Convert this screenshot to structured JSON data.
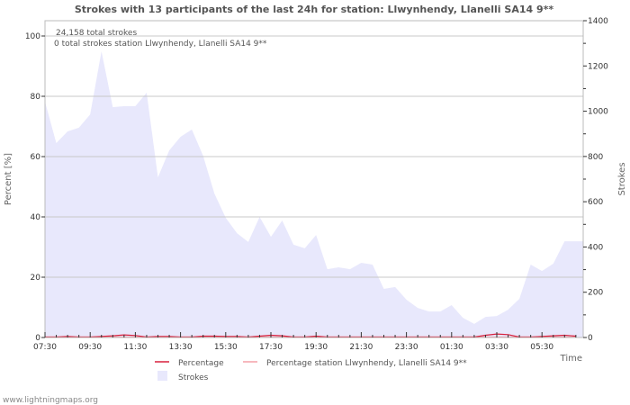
{
  "chart_data": {
    "type": "area",
    "title": "Strokes with 13 participants of the last 24h for station: Llwynhendy, Llanelli SA14 9**",
    "annotations": [
      "24,158 total strokes",
      "0 total strokes station Llwynhendy, Llanelli SA14 9**"
    ],
    "xlabel": "Time",
    "ylabel_left": "Percent   [%]",
    "ylabel_right": "Strokes",
    "x_tick_labels": [
      "07:30",
      "09:30",
      "11:30",
      "13:30",
      "15:30",
      "17:30",
      "19:30",
      "21:30",
      "23:30",
      "01:30",
      "03:30",
      "05:30"
    ],
    "y_left_ticks": [
      0,
      20,
      40,
      60,
      80,
      100
    ],
    "y_right_ticks": [
      0,
      200,
      400,
      600,
      800,
      1000,
      1200,
      1400
    ],
    "ylim_left": [
      0,
      105
    ],
    "ylim_right": [
      0,
      1400
    ],
    "grid": true,
    "legend_position": "bottom",
    "x": [
      "07:30",
      "08:00",
      "08:30",
      "09:00",
      "09:30",
      "10:00",
      "10:30",
      "11:00",
      "11:30",
      "12:00",
      "12:30",
      "13:00",
      "13:30",
      "14:00",
      "14:30",
      "15:00",
      "15:30",
      "16:00",
      "16:30",
      "17:00",
      "17:30",
      "18:00",
      "18:30",
      "19:00",
      "19:30",
      "20:00",
      "20:30",
      "21:00",
      "21:30",
      "22:00",
      "22:30",
      "23:00",
      "23:30",
      "00:00",
      "00:30",
      "01:00",
      "01:30",
      "02:00",
      "02:30",
      "03:00",
      "03:30",
      "04:00",
      "04:30",
      "05:00",
      "05:30",
      "06:00",
      "06:30",
      "07:00"
    ],
    "series": [
      {
        "name": "Strokes",
        "axis": "right",
        "color": "#e8e8fc",
        "values": [
          1042,
          859,
          911,
          927,
          986,
          1265,
          1018,
          1022,
          1022,
          1082,
          708,
          827,
          887,
          919,
          803,
          636,
          529,
          461,
          422,
          533,
          445,
          517,
          410,
          394,
          453,
          302,
          310,
          302,
          330,
          322,
          215,
          223,
          167,
          131,
          115,
          115,
          143,
          87,
          60,
          91,
          95,
          123,
          171,
          322,
          294,
          326,
          425,
          425
        ]
      },
      {
        "name": "Percentage",
        "axis": "left",
        "color": "#d8203c",
        "values": [
          0,
          0,
          0.2,
          0,
          0,
          0.2,
          0.4,
          0.7,
          0.5,
          0,
          0.2,
          0.2,
          0,
          0,
          0.3,
          0.3,
          0.2,
          0.2,
          0,
          0.3,
          0.6,
          0.4,
          0,
          0,
          0.3,
          0,
          0,
          0,
          0,
          0,
          0,
          0,
          0,
          0,
          0,
          0,
          0,
          0,
          0,
          0.6,
          1,
          0.8,
          0,
          0,
          0.2,
          0.4,
          0.6,
          0.3
        ]
      },
      {
        "name": "Percentage station Llwynhendy, Llanelli SA14 9**",
        "axis": "left",
        "color": "#f4a0a8",
        "values": [
          0,
          0,
          0,
          0,
          0,
          0,
          0,
          0,
          0,
          0,
          0,
          0,
          0,
          0,
          0,
          0,
          0,
          0,
          0,
          0,
          0,
          0,
          0,
          0,
          0,
          0,
          0,
          0,
          0,
          0,
          0,
          0,
          0,
          0,
          0,
          0,
          0,
          0,
          0,
          0,
          0,
          0,
          0,
          0,
          0,
          0,
          0,
          0
        ]
      }
    ]
  },
  "footer": "www.lightningmaps.org"
}
